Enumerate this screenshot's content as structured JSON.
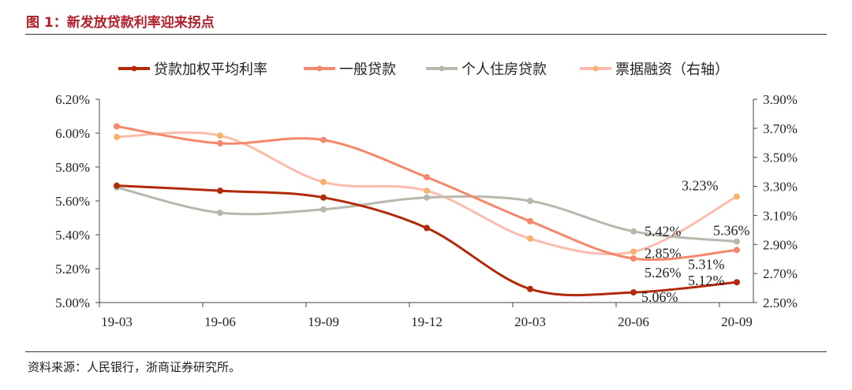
{
  "title": "图 1：新发放贷款利率迎来拐点",
  "source": "资料来源：人民银行，浙商证券研究所。",
  "chart_data": {
    "type": "line",
    "categories": [
      "19-03",
      "19-06",
      "19-09",
      "19-12",
      "20-03",
      "20-06",
      "20-09"
    ],
    "left_axis": {
      "ylim": [
        5.0,
        6.2
      ],
      "ticks": [
        "5.00%",
        "5.20%",
        "5.40%",
        "5.60%",
        "5.80%",
        "6.00%",
        "6.20%"
      ]
    },
    "right_axis": {
      "ylim": [
        2.5,
        3.9
      ],
      "ticks": [
        "2.50%",
        "2.70%",
        "2.90%",
        "3.10%",
        "3.30%",
        "3.50%",
        "3.70%",
        "3.90%"
      ]
    },
    "legend_position": "top",
    "series": [
      {
        "name": "贷款加权平均利率",
        "axis": "left",
        "color": "#b22a0a",
        "values": [
          5.69,
          5.66,
          5.62,
          5.44,
          5.08,
          5.06,
          5.12
        ],
        "labels": [
          null,
          null,
          null,
          null,
          null,
          "5.06%",
          "5.12%"
        ]
      },
      {
        "name": "一般贷款",
        "axis": "left",
        "color": "#f5876a",
        "values": [
          6.04,
          5.94,
          5.96,
          5.74,
          5.48,
          5.26,
          5.31
        ],
        "labels": [
          null,
          null,
          null,
          null,
          null,
          "5.26%",
          "5.31%"
        ]
      },
      {
        "name": "个人住房贷款",
        "axis": "left",
        "color": "#b8b8ae",
        "values": [
          5.68,
          5.53,
          5.55,
          5.62,
          5.6,
          5.42,
          5.36
        ],
        "labels": [
          null,
          null,
          null,
          null,
          null,
          "5.42%",
          "5.36%"
        ]
      },
      {
        "name": "票据融资（右轴）",
        "axis": "right",
        "color": "#fbbcae",
        "marker": "#f7b36a",
        "values": [
          3.64,
          3.65,
          3.33,
          3.27,
          2.94,
          2.85,
          3.23
        ],
        "labels": [
          null,
          null,
          null,
          null,
          null,
          "2.85%",
          "3.23%"
        ]
      }
    ]
  }
}
